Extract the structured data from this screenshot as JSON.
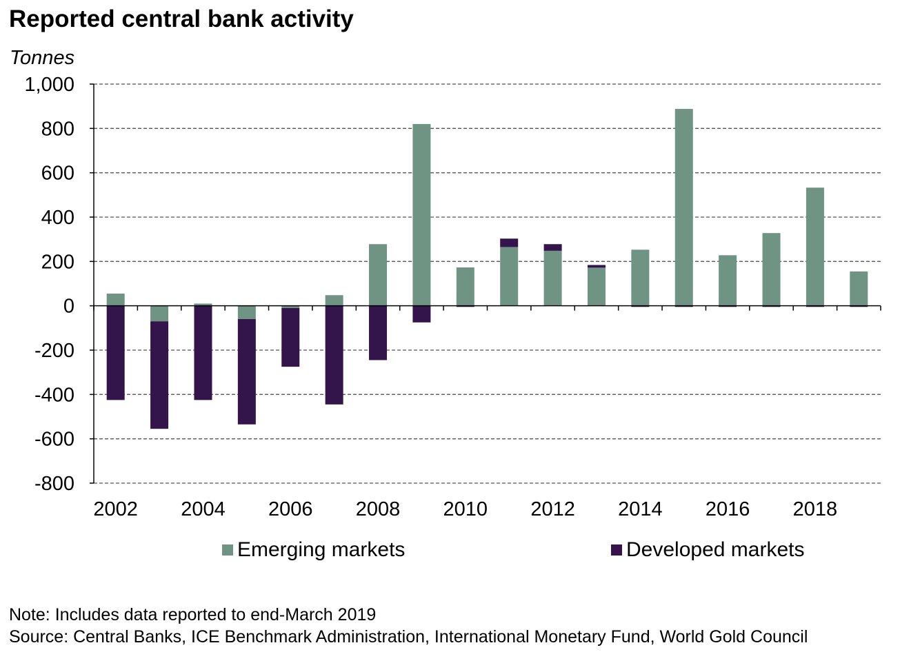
{
  "chart_data": {
    "type": "bar",
    "stacked": true,
    "title": "Reported central bank activity",
    "ylabel": "Tonnes",
    "ylim": [
      -800,
      1000
    ],
    "yticks": [
      1000,
      800,
      600,
      400,
      200,
      0,
      -200,
      -400,
      -600,
      -800
    ],
    "ytick_labels": [
      "1,000",
      "800",
      "600",
      "400",
      "200",
      "0",
      "-200",
      "-400",
      "-600",
      "-800"
    ],
    "categories": [
      "2002",
      "2003",
      "2004",
      "2005",
      "2006",
      "2007",
      "2008",
      "2009",
      "2010",
      "2011",
      "2012",
      "2013",
      "2014",
      "2015",
      "2016",
      "2017",
      "2018",
      "2019"
    ],
    "xtick_labels": [
      "2002",
      "2004",
      "2006",
      "2008",
      "2010",
      "2012",
      "2014",
      "2016",
      "2018"
    ],
    "grid": "horizontal-dashed",
    "legend_position": "bottom",
    "series": [
      {
        "name": "Emerging markets",
        "color": "#6f9484",
        "values": [
          55,
          -70,
          10,
          -60,
          -10,
          48,
          278,
          820,
          173,
          265,
          248,
          172,
          253,
          888,
          228,
          328,
          533,
          155
        ]
      },
      {
        "name": "Developed markets",
        "color": "#33154c",
        "values": [
          -425,
          -485,
          -425,
          -475,
          -265,
          -445,
          -245,
          -75,
          -5,
          38,
          30,
          12,
          -5,
          -5,
          -5,
          -5,
          -5,
          -5
        ]
      }
    ]
  },
  "notes": {
    "note": "Note: Includes data reported to end-March 2019",
    "source": "Source: Central Banks, ICE Benchmark Administration, International Monetary Fund, World Gold Council"
  }
}
